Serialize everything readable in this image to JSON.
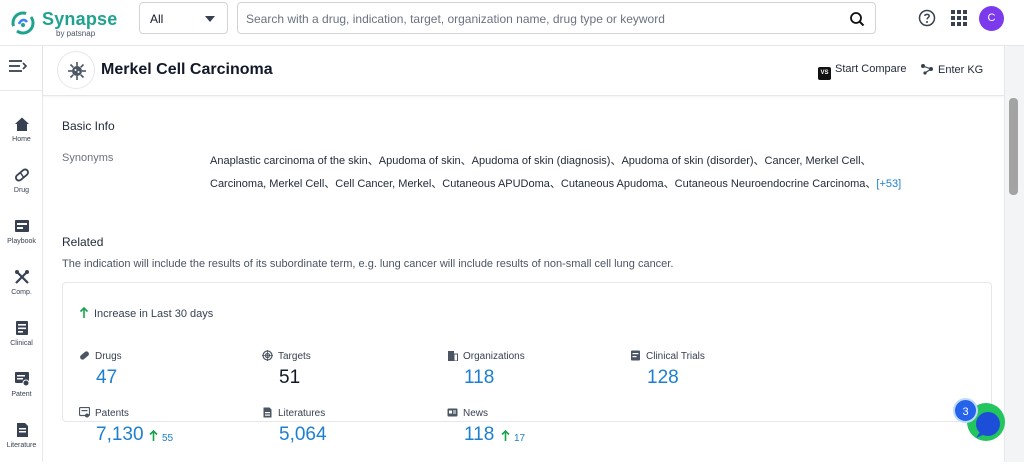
{
  "brand": {
    "name": "Synapse",
    "tagline": "by patsnap"
  },
  "search": {
    "scope": "All",
    "placeholder": "Search with a drug, indication, target, organization name, drug type or keyword"
  },
  "user": {
    "initial": "C"
  },
  "nav": [
    {
      "label": "Home",
      "icon": "home-icon"
    },
    {
      "label": "Drug",
      "icon": "pill-icon"
    },
    {
      "label": "Playbook",
      "icon": "playbook-icon"
    },
    {
      "label": "Comp.",
      "icon": "competition-icon"
    },
    {
      "label": "Clinical",
      "icon": "clinical-icon"
    },
    {
      "label": "Patent",
      "icon": "patent-icon"
    },
    {
      "label": "Literature",
      "icon": "literature-icon"
    }
  ],
  "header": {
    "title": "Merkel Cell Carcinoma",
    "compare_label": "Start Compare",
    "compare_badge": "VS",
    "kg_label": "Enter KG"
  },
  "basic_info": {
    "heading": "Basic Info",
    "synonyms_label": "Synonyms",
    "synonyms_line1": "Anaplastic carcinoma of the skin、Apudoma of skin、Apudoma of skin (diagnosis)、Apudoma of skin (disorder)、Cancer, Merkel Cell、",
    "synonyms_line2": "Carcinoma, Merkel Cell、Cell Cancer, Merkel、Cutaneous APUDoma、Cutaneous Apudoma、Cutaneous Neuroendocrine Carcinoma、",
    "more": "[+53]"
  },
  "related": {
    "heading": "Related",
    "description": "The indication will include the results of its subordinate term, e.g. lung cancer will include results of non-small cell lung cancer.",
    "increase_label": "Increase in Last 30 days",
    "stats": [
      {
        "label": "Drugs",
        "value": "47",
        "icon": "pill-icon"
      },
      {
        "label": "Targets",
        "value": "51",
        "icon": "target-icon"
      },
      {
        "label": "Organizations",
        "value": "118",
        "icon": "organization-icon"
      },
      {
        "label": "Clinical Trials",
        "value": "128",
        "icon": "clinical-icon"
      },
      {
        "label": "Patents",
        "value": "7,130",
        "delta": "55",
        "icon": "patent-icon"
      },
      {
        "label": "Literatures",
        "value": "5,064",
        "icon": "literature-icon"
      },
      {
        "label": "News",
        "value": "118",
        "delta": "17",
        "icon": "news-icon"
      }
    ]
  },
  "notification": {
    "count": "3"
  },
  "colors": {
    "brand": "#1fa38f",
    "link": "#1d7fd1",
    "avatar": "#7c3aed",
    "increase": "#16a34a"
  }
}
